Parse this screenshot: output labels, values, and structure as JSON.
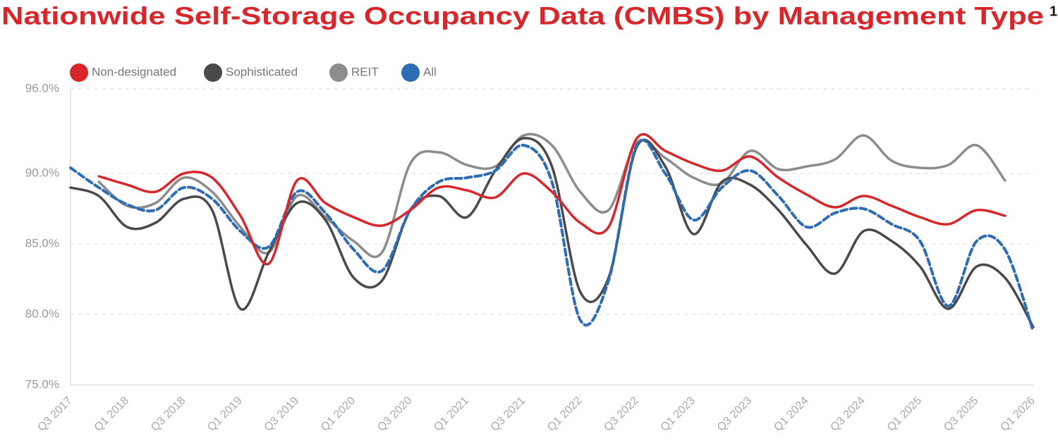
{
  "chart_data": {
    "type": "line",
    "title": "Nationwide Self-Storage Occupancy Data (CMBS) by Management Type",
    "title_footnote": "1",
    "categories": [
      "Q3 2017",
      null,
      "Q1 2018",
      null,
      "Q3 2018",
      null,
      "Q1 2019",
      null,
      "Q3 2019",
      null,
      "Q1 2020",
      null,
      "Q3 2020",
      null,
      "Q1 2021",
      null,
      "Q3 2021",
      null,
      "Q1 2022",
      null,
      "Q3 2022",
      null,
      "Q1 2023",
      null,
      "Q3 2023",
      null,
      "Q1 2024",
      null,
      "Q3 2024",
      null,
      "Q1 2025",
      null,
      "Q3 2025",
      null,
      "Q1 2026"
    ],
    "series": [
      {
        "name": "Non-designated",
        "color": "#d9262b",
        "dashed": false,
        "values": [
          null,
          89.8,
          89.2,
          88.7,
          90.0,
          89.7,
          87.0,
          83.6,
          89.5,
          87.9,
          86.9,
          86.3,
          87.4,
          89.0,
          88.8,
          88.3,
          90.0,
          88.7,
          86.5,
          86.2,
          92.5,
          91.6,
          90.7,
          90.2,
          91.2,
          89.7,
          88.5,
          87.6,
          88.4,
          87.7,
          86.9,
          86.4,
          87.4,
          87.0,
          null
        ]
      },
      {
        "name": "Sophisticated",
        "color": "#4a4a4d",
        "dashed": false,
        "values": [
          89.0,
          88.4,
          86.2,
          86.5,
          88.2,
          87.4,
          80.4,
          84.4,
          87.9,
          86.7,
          82.6,
          82.4,
          87.4,
          88.4,
          86.9,
          90.2,
          92.5,
          90.5,
          81.6,
          82.6,
          91.9,
          90.5,
          85.7,
          89.4,
          89.2,
          87.4,
          84.9,
          82.9,
          85.9,
          85.2,
          83.4,
          80.4,
          83.4,
          82.6,
          79.1
        ]
      },
      {
        "name": "REIT",
        "color": "#8c8c8c",
        "dashed": false,
        "values": [
          null,
          89.4,
          87.7,
          87.9,
          89.7,
          88.7,
          86.2,
          84.4,
          88.4,
          86.9,
          85.2,
          84.4,
          90.7,
          91.5,
          90.6,
          90.5,
          92.7,
          92.0,
          88.7,
          87.4,
          92.2,
          91.1,
          89.7,
          89.3,
          91.6,
          90.3,
          90.5,
          91.0,
          92.7,
          90.9,
          90.4,
          90.6,
          92.0,
          89.5,
          null
        ]
      },
      {
        "name": "All",
        "color": "#2e6db4",
        "dashed": true,
        "values": [
          90.4,
          89.0,
          87.8,
          87.4,
          89.0,
          88.2,
          85.9,
          84.8,
          88.7,
          87.2,
          84.6,
          83.1,
          87.4,
          89.4,
          89.7,
          90.2,
          92.0,
          89.4,
          79.6,
          82.4,
          92.0,
          90.0,
          86.7,
          89.0,
          90.2,
          88.4,
          86.2,
          87.2,
          87.5,
          86.4,
          85.2,
          80.6,
          85.2,
          84.6,
          78.8
        ]
      }
    ],
    "ylim": [
      75,
      96
    ],
    "yticks": [
      {
        "value": 75,
        "label": "75.0%"
      },
      {
        "value": 80,
        "label": "80.0%"
      },
      {
        "value": 85,
        "label": "85.0%"
      },
      {
        "value": 90,
        "label": "90.0%"
      },
      {
        "value": 96,
        "label": "96.0%"
      }
    ],
    "grid": true,
    "legend": "top-left"
  }
}
